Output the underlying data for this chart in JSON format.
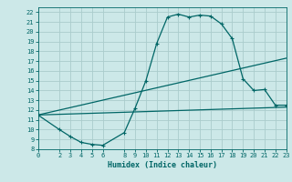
{
  "xlabel": "Humidex (Indice chaleur)",
  "bg_color": "#cce8e8",
  "grid_color": "#aacccc",
  "line_color": "#006666",
  "xlim": [
    0,
    23
  ],
  "ylim": [
    8,
    22.5
  ],
  "xticks": [
    0,
    2,
    3,
    4,
    5,
    6,
    8,
    9,
    10,
    11,
    12,
    13,
    14,
    15,
    16,
    17,
    18,
    19,
    20,
    21,
    22,
    23
  ],
  "yticks": [
    8,
    9,
    10,
    11,
    12,
    13,
    14,
    15,
    16,
    17,
    18,
    19,
    20,
    21,
    22
  ],
  "line1_x": [
    0,
    2,
    3,
    4,
    5,
    6,
    8,
    9,
    10,
    11,
    12,
    13,
    14,
    15,
    16,
    17,
    18,
    19,
    20,
    21,
    22,
    23
  ],
  "line1_y": [
    11.5,
    10.0,
    9.3,
    8.7,
    8.5,
    8.4,
    9.7,
    12.2,
    15.0,
    18.8,
    21.5,
    21.8,
    21.5,
    21.7,
    21.6,
    20.8,
    19.3,
    15.2,
    14.0,
    14.1,
    12.5,
    12.5
  ],
  "line2_x": [
    0,
    23
  ],
  "line2_y": [
    11.5,
    17.3
  ],
  "line3_x": [
    0,
    23
  ],
  "line3_y": [
    11.5,
    12.3
  ],
  "xlabel_fontsize": 6,
  "tick_fontsize": 5
}
